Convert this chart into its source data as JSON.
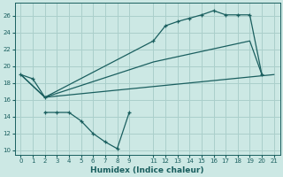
{
  "bg_color": "#cce8e4",
  "grid_color": "#aacfcb",
  "line_color": "#1a5f5f",
  "xlabel": "Humidex (Indice chaleur)",
  "xlim": [
    -0.5,
    21.5
  ],
  "ylim": [
    9.5,
    27.5
  ],
  "yticks": [
    10,
    12,
    14,
    16,
    18,
    20,
    22,
    24,
    26
  ],
  "xticks": [
    0,
    1,
    2,
    3,
    4,
    5,
    6,
    7,
    8,
    9,
    11,
    12,
    13,
    14,
    15,
    16,
    17,
    18,
    19,
    20,
    21
  ],
  "xticklabels": [
    "0",
    "1",
    "2",
    "3",
    "4",
    "5",
    "6",
    "7",
    "8",
    "9",
    "11",
    "12",
    "13",
    "14",
    "15",
    "16",
    "17",
    "18",
    "19",
    "20",
    "21"
  ],
  "line1_x": [
    0,
    1,
    2,
    11,
    12,
    13,
    14,
    15,
    16,
    17,
    18,
    19,
    20
  ],
  "line1_y": [
    19.0,
    18.5,
    16.3,
    23.0,
    24.8,
    25.3,
    25.7,
    26.1,
    26.6,
    26.1,
    26.1,
    26.1,
    19.0
  ],
  "line2_x": [
    0,
    2,
    11,
    19,
    20
  ],
  "line2_y": [
    19.0,
    16.3,
    20.5,
    23.0,
    19.0
  ],
  "line3_x": [
    0,
    2,
    21
  ],
  "line3_y": [
    19.0,
    16.3,
    19.0
  ],
  "line4_x": [
    2,
    3,
    4,
    5,
    6,
    7,
    8,
    9
  ],
  "line4_y": [
    14.5,
    14.5,
    14.5,
    13.5,
    12.0,
    11.0,
    10.2,
    14.5
  ],
  "marker": "+"
}
